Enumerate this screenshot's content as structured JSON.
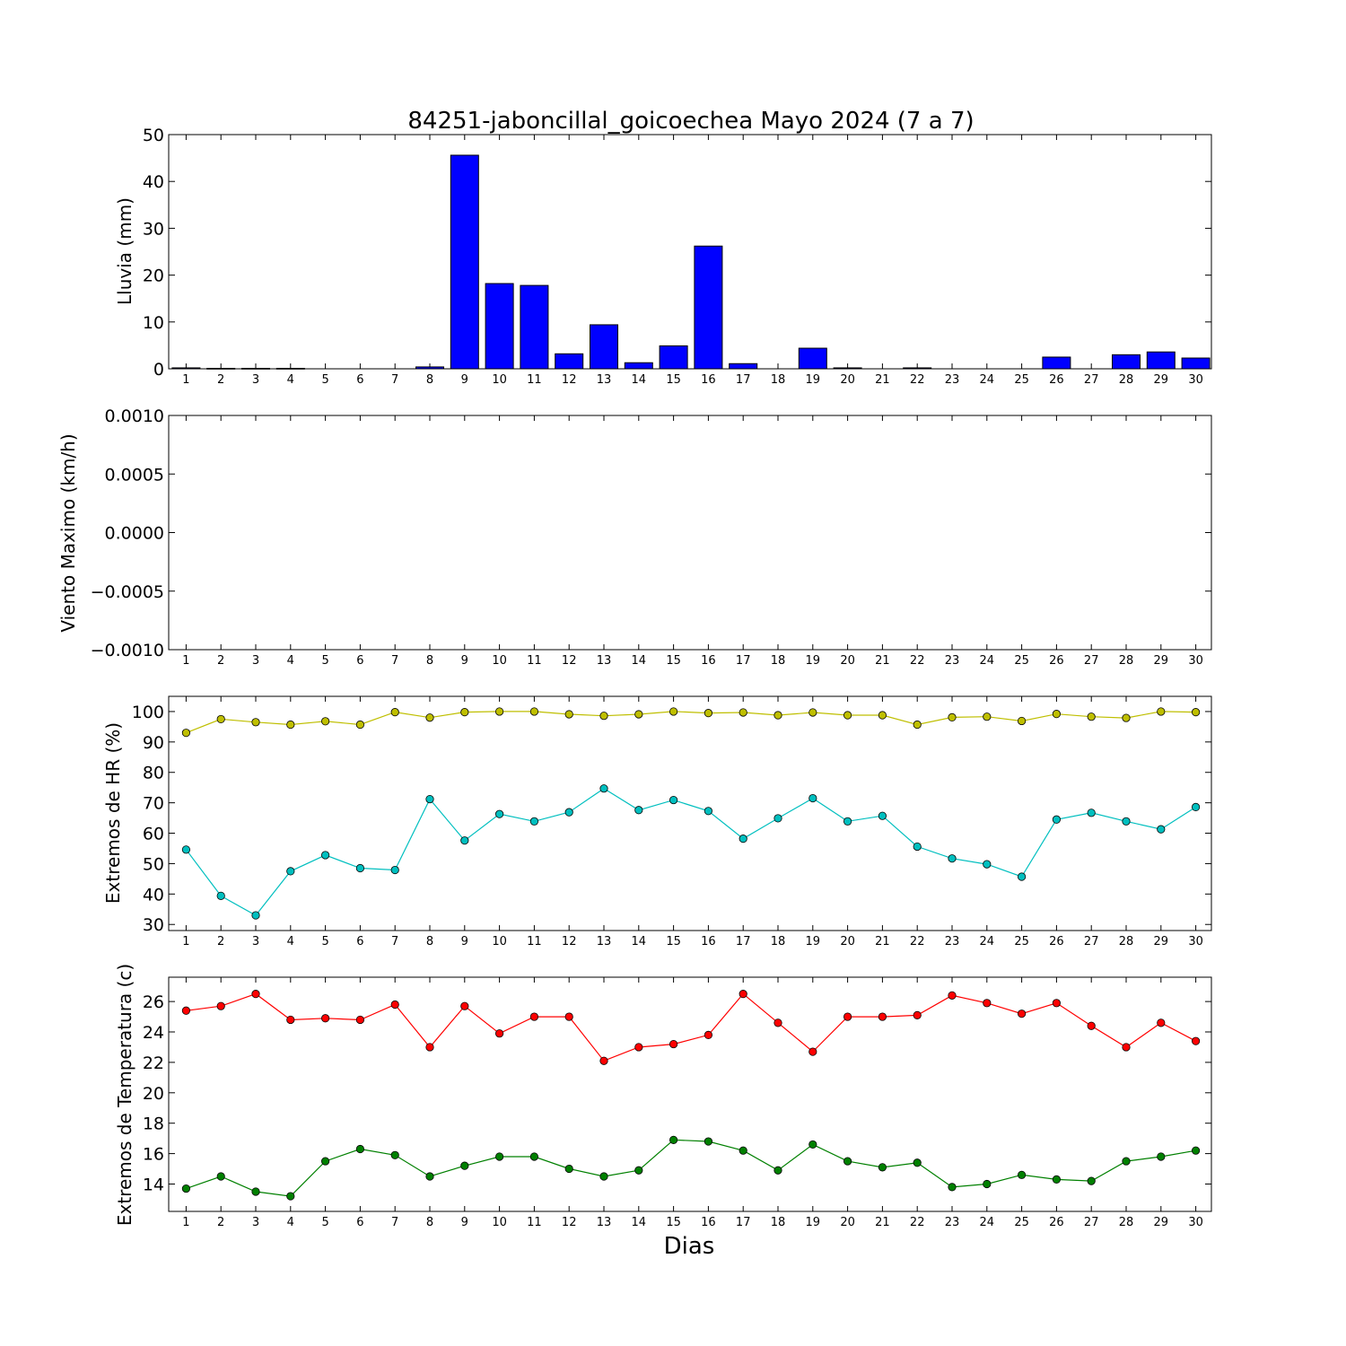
{
  "chart_data": [
    {
      "type": "bar",
      "title": "84251-jaboncillal_goicoechea Mayo 2024  (7 a 7)",
      "ylabel": "Lluvia (mm)",
      "xlabel": "",
      "categories": [
        "1",
        "2",
        "3",
        "4",
        "5",
        "6",
        "7",
        "8",
        "9",
        "10",
        "11",
        "12",
        "13",
        "14",
        "15",
        "16",
        "17",
        "18",
        "19",
        "20",
        "21",
        "22",
        "23",
        "24",
        "25",
        "26",
        "27",
        "28",
        "29",
        "30"
      ],
      "values": [
        0.2,
        0.1,
        0.1,
        0.1,
        0,
        0,
        0,
        0.4,
        45.6,
        18.2,
        17.8,
        3.2,
        9.4,
        1.3,
        4.9,
        26.2,
        1.1,
        0,
        4.4,
        0.2,
        0,
        0.2,
        0,
        0,
        0,
        2.5,
        0,
        3.0,
        3.6,
        2.3
      ],
      "ylim": [
        0,
        50
      ],
      "yticks": [
        "0",
        "10",
        "20",
        "30",
        "40",
        "50"
      ],
      "color": "#0000ff",
      "grid": false
    },
    {
      "type": "line",
      "title": "",
      "ylabel": "Viento Maximo (km/h)",
      "xlabel": "",
      "categories": [
        "1",
        "2",
        "3",
        "4",
        "5",
        "6",
        "7",
        "8",
        "9",
        "10",
        "11",
        "12",
        "13",
        "14",
        "15",
        "16",
        "17",
        "18",
        "19",
        "20",
        "21",
        "22",
        "23",
        "24",
        "25",
        "26",
        "27",
        "28",
        "29",
        "30"
      ],
      "series": [],
      "ylim": [
        -0.001,
        0.001
      ],
      "yticks": [
        "−0.0010",
        "−0.0005",
        "0.0000",
        "0.0005",
        "0.0010"
      ],
      "grid": false
    },
    {
      "type": "line",
      "title": "",
      "ylabel": "Extremos de HR (%)",
      "xlabel": "",
      "categories": [
        "1",
        "2",
        "3",
        "4",
        "5",
        "6",
        "7",
        "8",
        "9",
        "10",
        "11",
        "12",
        "13",
        "14",
        "15",
        "16",
        "17",
        "18",
        "19",
        "20",
        "21",
        "22",
        "23",
        "24",
        "25",
        "26",
        "27",
        "28",
        "29",
        "30"
      ],
      "series": [
        {
          "color": "#bfbf00",
          "values": [
            93,
            97.5,
            96.5,
            95.7,
            96.8,
            95.7,
            99.8,
            98,
            99.8,
            100,
            100,
            99.1,
            98.6,
            99.1,
            100,
            99.5,
            99.7,
            98.8,
            99.7,
            98.8,
            98.8,
            95.7,
            98.1,
            98.3,
            96.9,
            99.2,
            98.3,
            97.9,
            100,
            99.8
          ]
        },
        {
          "color": "#00bfbf",
          "values": [
            54.6,
            39.4,
            33.0,
            47.5,
            52.8,
            48.5,
            47.9,
            71.2,
            57.6,
            66.3,
            63.9,
            66.9,
            74.7,
            67.6,
            70.9,
            67.3,
            58.2,
            64.9,
            71.5,
            63.9,
            65.7,
            55.6,
            51.7,
            49.8,
            45.7,
            64.5,
            66.7,
            63.9,
            61.3,
            68.6
          ]
        }
      ],
      "ylim": [
        28,
        105
      ],
      "yticks": [
        "30",
        "40",
        "50",
        "60",
        "70",
        "80",
        "90",
        "100"
      ],
      "grid": false
    },
    {
      "type": "line",
      "title": "",
      "ylabel": "Extremos de Temperatura (c)",
      "xlabel": "Dias",
      "categories": [
        "1",
        "2",
        "3",
        "4",
        "5",
        "6",
        "7",
        "8",
        "9",
        "10",
        "11",
        "12",
        "13",
        "14",
        "15",
        "16",
        "17",
        "18",
        "19",
        "20",
        "21",
        "22",
        "23",
        "24",
        "25",
        "26",
        "27",
        "28",
        "29",
        "30"
      ],
      "series": [
        {
          "color": "#ff0000",
          "values": [
            25.4,
            25.7,
            26.5,
            24.8,
            24.9,
            24.8,
            25.8,
            23.0,
            25.7,
            23.9,
            25.0,
            25.0,
            22.1,
            23.0,
            23.2,
            23.8,
            26.5,
            24.6,
            22.7,
            25.0,
            25.0,
            25.1,
            26.4,
            25.9,
            25.2,
            25.9,
            24.4,
            23.0,
            24.6,
            23.4
          ]
        },
        {
          "color": "#008000",
          "values": [
            13.7,
            14.5,
            13.5,
            13.2,
            15.5,
            16.3,
            15.9,
            14.5,
            15.2,
            15.8,
            15.8,
            15.0,
            14.5,
            14.9,
            16.9,
            16.8,
            16.2,
            14.9,
            16.6,
            15.5,
            15.1,
            15.4,
            13.8,
            14.0,
            14.6,
            14.3,
            14.2,
            15.5,
            15.8,
            16.2
          ]
        }
      ],
      "ylim": [
        12.2,
        27.6
      ],
      "yticks": [
        "14",
        "16",
        "18",
        "20",
        "22",
        "24",
        "26"
      ],
      "grid": false
    }
  ]
}
